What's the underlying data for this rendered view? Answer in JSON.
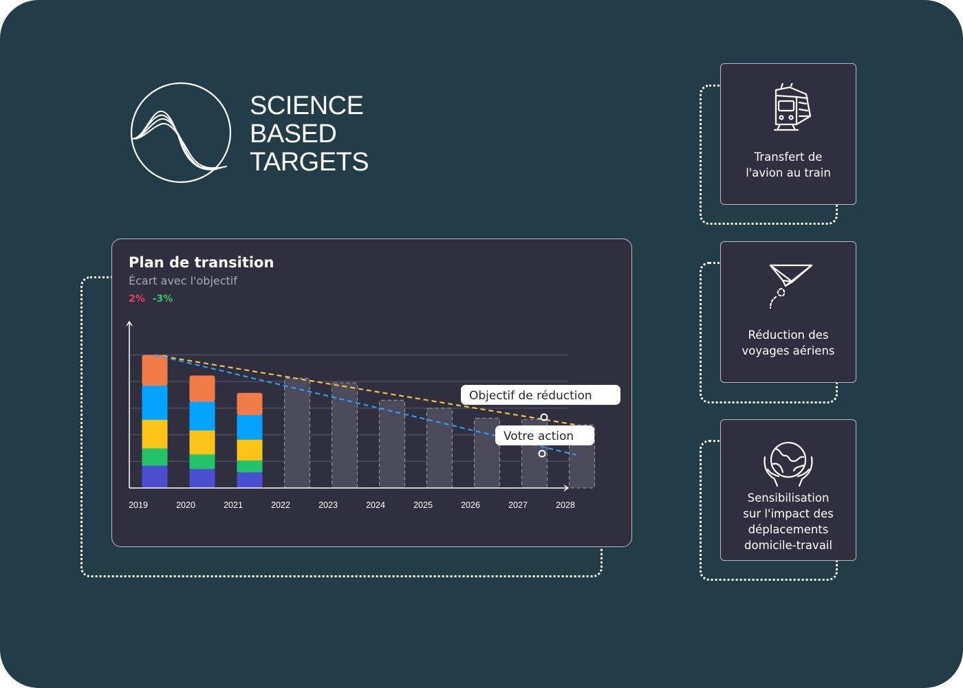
{
  "logo": {
    "lines": [
      "SCIENCE",
      "BASED",
      "TARGETS"
    ]
  },
  "chart": {
    "title": "Plan de transition",
    "subtitle": "Écart avec l'objectif",
    "stat_a": "2%",
    "stat_b": "-3%",
    "callout_target": "Objectif de réduction",
    "callout_action": "Votre action"
  },
  "chart_data": {
    "type": "bar",
    "categories": [
      "2019",
      "2020",
      "2021",
      "2022",
      "2023",
      "2024",
      "2025",
      "2026",
      "2027",
      "2028"
    ],
    "stacked_segments": [
      {
        "color": "#4a4fd0",
        "values": [
          34,
          29,
          24,
          null,
          null,
          null,
          null,
          null,
          null,
          null
        ]
      },
      {
        "color": "#23c26b",
        "values": [
          26,
          22,
          18,
          null,
          null,
          null,
          null,
          null,
          null,
          null
        ]
      },
      {
        "color": "#fcc419",
        "values": [
          43,
          36,
          31,
          null,
          null,
          null,
          null,
          null,
          null,
          null
        ]
      },
      {
        "color": "#04a3ff",
        "values": [
          51,
          43,
          37,
          null,
          null,
          null,
          null,
          null,
          null,
          null
        ]
      },
      {
        "color": "#f27c48",
        "values": [
          46,
          39,
          33,
          null,
          null,
          null,
          null,
          null,
          null,
          null
        ]
      }
    ],
    "projected_totals": [
      null,
      null,
      null,
      165,
      158,
      132,
      120,
      105,
      103,
      95
    ],
    "projected_color": "#4b4b5c",
    "lines": [
      {
        "style": "dashed",
        "color": "#f5c342",
        "from": [
          "2019",
          200
        ],
        "to": [
          "2028",
          95
        ]
      },
      {
        "style": "dashed",
        "color": "#2aa0f5",
        "from": [
          "2019",
          200
        ],
        "to": [
          "2028",
          50
        ]
      }
    ],
    "ylim": [
      0,
      250
    ],
    "grid": true,
    "xlabel": "",
    "ylabel": ""
  },
  "actions": [
    {
      "icon": "train-icon",
      "label": "Transfert de\nl'avion au train"
    },
    {
      "icon": "paper-plane-icon",
      "label": "Réduction des\nvoyages aériens"
    },
    {
      "icon": "earth-hands-icon",
      "label": "Sensibilisation\nsur l'impact des\ndéplacements\ndomicile-travail"
    }
  ],
  "colors": {
    "background": "#223d47",
    "card": "#2f2f40",
    "accent_red": "#ee3d66",
    "accent_green": "#3fc46b"
  }
}
